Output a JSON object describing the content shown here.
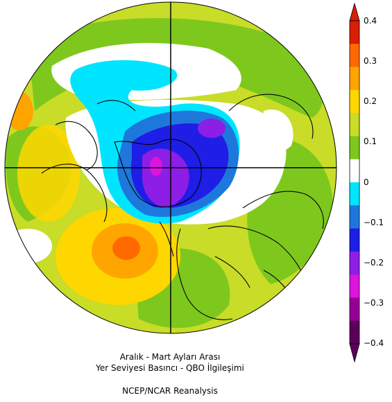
{
  "colorbar": {
    "ticks": [
      "0.4",
      "0.3",
      "0.2",
      "0.1",
      "0",
      "−0.1",
      "−0.2",
      "−0.3",
      "−0.4"
    ],
    "bands_top_to_bottom": [
      "#d81e05",
      "#ff6a00",
      "#ffa500",
      "#ffd700",
      "#c8dc28",
      "#7ec81e",
      "#ffffff",
      "#00e5ff",
      "#1e78dc",
      "#1e1ee6",
      "#8c1ee6",
      "#dc14dc",
      "#960096",
      "#5a005a"
    ]
  },
  "caption": {
    "line1": "Aralık - Mart Ayları Arası",
    "line2": "Yer Seviyesi Basıncı - QBO İlgileşimi",
    "line3": "NCEP/NCAR Reanalysis"
  },
  "map": {
    "projection": "north-polar-stereographic",
    "colors": {
      "green": "#7ec81e",
      "yellow_green": "#c8dc28",
      "yellow": "#ffd700",
      "orange": "#ffa500",
      "dark_orange": "#ff6a00",
      "white": "#ffffff",
      "cyan": "#00e5ff",
      "blue": "#1e78dc",
      "deep_blue": "#1e1ee6",
      "violet": "#8c1ee6",
      "magenta": "#dc14dc"
    }
  }
}
